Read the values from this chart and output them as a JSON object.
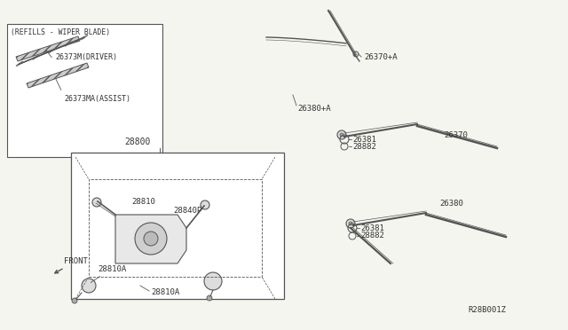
{
  "bg_color": "#f5f5f0",
  "line_color": "#555555",
  "text_color": "#333333",
  "title_ref": "R28B001Z",
  "labels": {
    "refills_box_title": "(REFILLS - WIPER BLADE)",
    "driver_label": "26373M(DRIVER)",
    "assist_label": "26373MA(ASSIST)",
    "assembly_label": "28800",
    "part_28810": "28810",
    "part_28840P": "28840P",
    "part_28810A_1": "28810A",
    "part_28810A_2": "28810A",
    "part_26380pA": "26380+A",
    "part_26370pA": "26370+A",
    "part_26370": "26370",
    "part_26380": "26380",
    "part_28882_1": "28882",
    "part_26381_1": "26381",
    "part_28882_2": "28882",
    "part_26381_2": "26381",
    "front_label": "FRONT"
  },
  "fig_width": 6.4,
  "fig_height": 3.72,
  "dpi": 100
}
